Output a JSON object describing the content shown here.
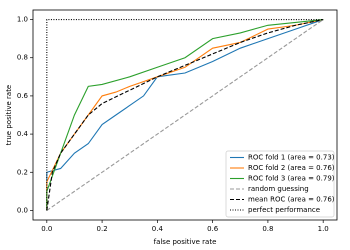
{
  "chart_data": {
    "type": "line",
    "xlabel": "false positive rate",
    "ylabel": "true positive rate",
    "xlim": [
      -0.05,
      1.05
    ],
    "ylim": [
      -0.05,
      1.05
    ],
    "xticks": [
      {
        "value": 0,
        "label": "0.0"
      },
      0.2,
      0.4,
      0.6,
      0.8,
      {
        "value": 1,
        "label": "1.0"
      }
    ],
    "yticks": [
      {
        "value": 0,
        "label": "0.0"
      },
      0.2,
      0.4,
      0.6,
      0.8,
      {
        "value": 1,
        "label": "1.0"
      }
    ],
    "grid": false,
    "legend": "lower right",
    "series": [
      {
        "name": "ROC fold 1 (area = 0.73)",
        "color": "#1f77b4",
        "dash": "solid",
        "x": [
          0,
          0,
          0.05,
          0.1,
          0.15,
          0.2,
          0.25,
          0.3,
          0.35,
          0.4,
          0.5,
          0.6,
          0.7,
          0.8,
          0.9,
          1
        ],
        "values": [
          0,
          0.2,
          0.22,
          0.3,
          0.35,
          0.45,
          0.5,
          0.55,
          0.6,
          0.7,
          0.72,
          0.78,
          0.85,
          0.9,
          0.95,
          1
        ]
      },
      {
        "name": "ROC fold 2 (area = 0.76)",
        "color": "#ff7f0e",
        "dash": "solid",
        "x": [
          0,
          0,
          0.05,
          0.1,
          0.15,
          0.2,
          0.25,
          0.3,
          0.4,
          0.5,
          0.6,
          0.7,
          0.8,
          0.9,
          1
        ],
        "values": [
          0,
          0.15,
          0.3,
          0.4,
          0.5,
          0.6,
          0.62,
          0.65,
          0.7,
          0.75,
          0.85,
          0.88,
          0.95,
          0.97,
          1
        ]
      },
      {
        "name": "ROC fold 3 (area = 0.79)",
        "color": "#2ca02c",
        "dash": "solid",
        "x": [
          0,
          0,
          0.05,
          0.1,
          0.15,
          0.2,
          0.3,
          0.4,
          0.5,
          0.6,
          0.7,
          0.8,
          1
        ],
        "values": [
          0,
          0.1,
          0.3,
          0.5,
          0.65,
          0.66,
          0.7,
          0.75,
          0.8,
          0.9,
          0.93,
          0.97,
          1
        ]
      },
      {
        "name": "random guessing",
        "color": "#999999",
        "dash": "dashed",
        "x": [
          0,
          1
        ],
        "values": [
          0,
          1
        ]
      },
      {
        "name": "mean ROC (area = 0.76)",
        "color": "#000000",
        "dash": "dashed",
        "x": [
          0,
          0.02,
          0.05,
          0.1,
          0.15,
          0.2,
          0.3,
          0.4,
          0.5,
          0.6,
          0.7,
          0.8,
          0.9,
          1
        ],
        "values": [
          0,
          0.2,
          0.3,
          0.4,
          0.5,
          0.56,
          0.63,
          0.7,
          0.76,
          0.82,
          0.88,
          0.93,
          0.97,
          1
        ]
      },
      {
        "name": "perfect performance",
        "color": "#000000",
        "dash": "dotted",
        "x": [
          0,
          0,
          1
        ],
        "values": [
          0,
          1,
          1
        ]
      }
    ]
  }
}
